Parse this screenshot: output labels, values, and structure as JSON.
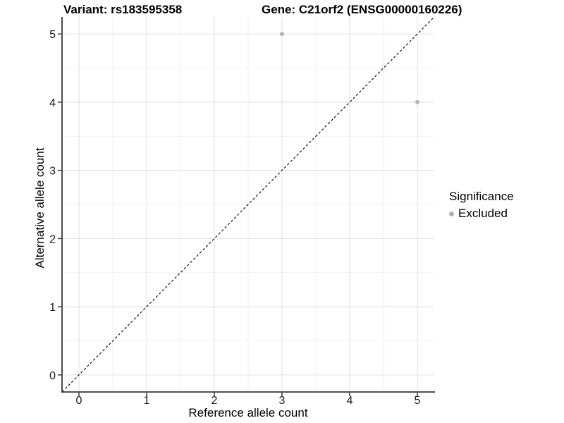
{
  "titles": {
    "variant": "Variant: rs183595358",
    "gene": "Gene: C21orf2 (ENSG00000160226)"
  },
  "axes": {
    "x_label": "Reference allele count",
    "y_label": "Alternative allele count"
  },
  "legend": {
    "title": "Significance",
    "items": [
      {
        "label": "Excluded",
        "color": "#b0b0b0"
      }
    ]
  },
  "colors": {
    "background": "#ffffff",
    "grid_major": "#e4e4e4",
    "grid_minor": "#f0f0f0",
    "axis_line": "#383838",
    "tick_label": "#1a1a1a",
    "reference_line": "#000000",
    "point": "#b5b5b5"
  },
  "chart_data": {
    "type": "scatter",
    "title": "Variant: rs183595358 / Gene: C21orf2 (ENSG00000160226)",
    "xlabel": "Reference allele count",
    "ylabel": "Alternative allele count",
    "xlim": [
      -0.25,
      5.25
    ],
    "ylim": [
      -0.25,
      5.25
    ],
    "x_ticks": [
      0,
      1,
      2,
      3,
      4,
      5
    ],
    "y_ticks": [
      0,
      1,
      2,
      3,
      4,
      5
    ],
    "grid": "major and minor gridlines, light gray on white",
    "legend_position": "right-middle",
    "series": [
      {
        "name": "Excluded",
        "color": "#b5b5b5",
        "point_radius": 3,
        "points": [
          {
            "x": 3,
            "y": 5
          },
          {
            "x": 5,
            "y": 4
          }
        ]
      }
    ],
    "reference_line": {
      "kind": "identity y = x",
      "style": "dashed",
      "color": "#000000",
      "from": [
        -0.25,
        -0.25
      ],
      "to": [
        5.25,
        5.25
      ]
    }
  }
}
